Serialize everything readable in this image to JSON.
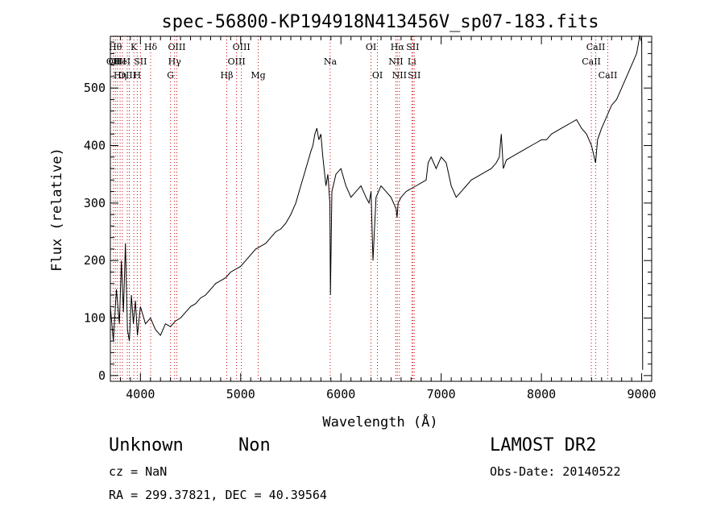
{
  "chart_data": {
    "type": "line",
    "title": "spec-56800-KP194918N413456V_sp07-183.fits",
    "xlabel": "Wavelength (Å)",
    "ylabel": "Flux (relative)",
    "xlim": [
      3700,
      9100
    ],
    "ylim": [
      -10,
      590
    ],
    "x_ticks": [
      4000,
      5000,
      6000,
      7000,
      8000,
      9000
    ],
    "y_ticks": [
      0,
      100,
      200,
      300,
      400,
      500
    ],
    "grid": false,
    "series": [
      {
        "x": [
          3700,
          3730,
          3760,
          3790,
          3810,
          3830,
          3850,
          3870,
          3890,
          3910,
          3930,
          3950,
          3970,
          4000,
          4050,
          4100,
          4150,
          4200,
          4250,
          4300,
          4350,
          4400,
          4450,
          4500,
          4550,
          4600,
          4650,
          4700,
          4750,
          4800,
          4850,
          4900,
          4950,
          5000,
          5050,
          5100,
          5150,
          5200,
          5250,
          5300,
          5350,
          5400,
          5450,
          5500,
          5550,
          5600,
          5650,
          5700,
          5720,
          5740,
          5760,
          5780,
          5800,
          5820,
          5850,
          5870,
          5890,
          5895,
          5910,
          5950,
          6000,
          6050,
          6100,
          6150,
          6200,
          6250,
          6280,
          6300,
          6320,
          6350,
          6400,
          6450,
          6500,
          6550,
          6560,
          6570,
          6600,
          6650,
          6700,
          6750,
          6800,
          6850,
          6870,
          6900,
          6950,
          7000,
          7050,
          7100,
          7150,
          7200,
          7250,
          7300,
          7350,
          7400,
          7450,
          7500,
          7550,
          7580,
          7600,
          7620,
          7650,
          7700,
          7750,
          7800,
          7850,
          7900,
          7950,
          8000,
          8050,
          8100,
          8150,
          8200,
          8250,
          8300,
          8350,
          8400,
          8450,
          8500,
          8540,
          8560,
          8600,
          8650,
          8700,
          8750,
          8800,
          8850,
          8900,
          8950,
          8980,
          9000,
          9010
        ],
        "y": [
          120,
          60,
          150,
          90,
          200,
          110,
          230,
          80,
          60,
          140,
          90,
          130,
          70,
          120,
          90,
          100,
          80,
          70,
          90,
          85,
          95,
          100,
          110,
          120,
          125,
          135,
          140,
          150,
          160,
          165,
          170,
          180,
          185,
          190,
          200,
          210,
          220,
          225,
          230,
          240,
          250,
          255,
          265,
          280,
          300,
          330,
          360,
          390,
          400,
          420,
          430,
          410,
          420,
          380,
          330,
          350,
          300,
          140,
          320,
          350,
          360,
          330,
          310,
          320,
          330,
          310,
          300,
          320,
          200,
          310,
          330,
          320,
          310,
          290,
          275,
          300,
          310,
          320,
          325,
          330,
          335,
          340,
          370,
          380,
          360,
          380,
          370,
          330,
          310,
          320,
          330,
          340,
          345,
          350,
          355,
          360,
          370,
          380,
          420,
          360,
          375,
          380,
          385,
          390,
          395,
          400,
          405,
          410,
          410,
          420,
          425,
          430,
          435,
          440,
          445,
          430,
          420,
          400,
          370,
          410,
          430,
          450,
          470,
          480,
          500,
          520,
          540,
          560,
          590,
          580,
          10
        ]
      }
    ],
    "lines": [
      {
        "wl": 3730,
        "label": "OII",
        "row": 1
      },
      {
        "wl": 3750,
        "label": "Hθ",
        "row": 0
      },
      {
        "wl": 3770,
        "label": "OIII",
        "row": 1
      },
      {
        "wl": 3797,
        "label": "Hη",
        "row": 2
      },
      {
        "wl": 3820,
        "label": "HeI",
        "row": 1
      },
      {
        "wl": 3869,
        "label": "OIII",
        "row": 2
      },
      {
        "wl": 3889,
        "label": "",
        "row": -1
      },
      {
        "wl": 3934,
        "label": "K",
        "row": 0
      },
      {
        "wl": 3968,
        "label": "H",
        "row": 2
      },
      {
        "wl": 4000,
        "label": "SII",
        "row": 1
      },
      {
        "wl": 4102,
        "label": "Hδ",
        "row": 0
      },
      {
        "wl": 4300,
        "label": "G",
        "row": 2
      },
      {
        "wl": 4341,
        "label": "Hγ",
        "row": 1
      },
      {
        "wl": 4363,
        "label": "OIII",
        "row": 0
      },
      {
        "wl": 4861,
        "label": "Hβ",
        "row": 2
      },
      {
        "wl": 4959,
        "label": "OIII",
        "row": 1
      },
      {
        "wl": 5007,
        "label": "OIII",
        "row": 0
      },
      {
        "wl": 5175,
        "label": "Mg",
        "row": 2
      },
      {
        "wl": 5893,
        "label": "Na",
        "row": 1
      },
      {
        "wl": 6300,
        "label": "OI",
        "row": 0
      },
      {
        "wl": 6364,
        "label": "OI",
        "row": 2
      },
      {
        "wl": 6548,
        "label": "NII",
        "row": 1
      },
      {
        "wl": 6563,
        "label": "Hα",
        "row": 0
      },
      {
        "wl": 6583,
        "label": "NII",
        "row": 2
      },
      {
        "wl": 6708,
        "label": "Li",
        "row": 1
      },
      {
        "wl": 6716,
        "label": "SII",
        "row": 0
      },
      {
        "wl": 6731,
        "label": "SII",
        "row": 2
      },
      {
        "wl": 8498,
        "label": "CaII",
        "row": 1
      },
      {
        "wl": 8542,
        "label": "CaII",
        "row": 0
      },
      {
        "wl": 8662,
        "label": "CaII",
        "row": 2
      }
    ]
  },
  "info": {
    "class_label": "Unknown",
    "subclass_label": "Non",
    "survey": "LAMOST DR2",
    "cz": "cz = NaN",
    "obs_date": "Obs-Date: 20140522",
    "radec": "RA = 299.37821, DEC =  40.39564"
  }
}
